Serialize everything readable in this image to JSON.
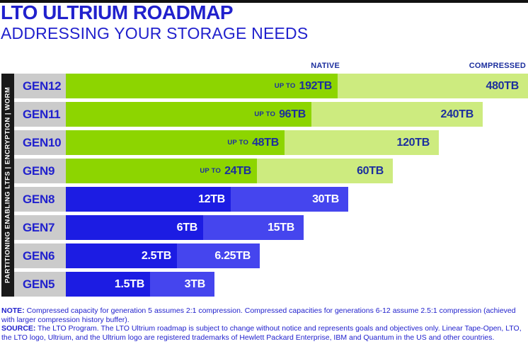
{
  "header": {
    "title": "LTO ULTRIUM ROADMAP",
    "subtitle": "ADDRESSING YOUR STORAGE NEEDS"
  },
  "chart_data": {
    "type": "bar",
    "orientation": "horizontal",
    "title": "LTO ULTRIUM ROADMAP",
    "subtitle": "ADDRESSING YOUR STORAGE NEEDS",
    "units": "TB",
    "scale": "log2 capacity (constant pixel step per generation), bars left-aligned",
    "legend_position": "column headers top-right",
    "column_headers": {
      "native": "NATIVE",
      "compressed": "COMPRESSED"
    },
    "sidebar_label": "PARTITIONING ENABLING LTFS | ENCRYPTION | WORM",
    "categories": [
      "GEN12",
      "GEN11",
      "GEN10",
      "GEN9",
      "GEN8",
      "GEN7",
      "GEN6",
      "GEN5"
    ],
    "series": [
      {
        "name": "Native (TB)",
        "values": [
          192,
          96,
          48,
          24,
          12,
          6,
          2.5,
          1.5
        ]
      },
      {
        "name": "Compressed (TB)",
        "values": [
          480,
          240,
          120,
          60,
          30,
          15,
          6.25,
          3
        ]
      }
    ],
    "rows": [
      {
        "gen": "GEN12",
        "native_tb": 192,
        "compressed_tb": 480,
        "native_prefix": "UP TO",
        "native_label": "192TB",
        "compressed_label": "480TB",
        "palette": "green",
        "native_width": 384,
        "compressed_width": 269
      },
      {
        "gen": "GEN11",
        "native_tb": 96,
        "compressed_tb": 240,
        "native_prefix": "UP TO",
        "native_label": "96TB",
        "compressed_label": "240TB",
        "palette": "green",
        "native_width": 347,
        "compressed_width": 242
      },
      {
        "gen": "GEN10",
        "native_tb": 48,
        "compressed_tb": 120,
        "native_prefix": "UP TO",
        "native_label": "48TB",
        "compressed_label": "120TB",
        "palette": "green",
        "native_width": 309,
        "compressed_width": 218
      },
      {
        "gen": "GEN9",
        "native_tb": 24,
        "compressed_tb": 60,
        "native_prefix": "UP TO",
        "native_label": "24TB",
        "compressed_label": "60TB",
        "palette": "green",
        "native_width": 270,
        "compressed_width": 192
      },
      {
        "gen": "GEN8",
        "native_tb": 12,
        "compressed_tb": 30,
        "native_prefix": "",
        "native_label": "12TB",
        "compressed_label": "30TB",
        "palette": "blue",
        "native_width": 233,
        "compressed_width": 166
      },
      {
        "gen": "GEN7",
        "native_tb": 6,
        "compressed_tb": 15,
        "native_prefix": "",
        "native_label": "6TB",
        "compressed_label": "15TB",
        "palette": "blue",
        "native_width": 194,
        "compressed_width": 142
      },
      {
        "gen": "GEN6",
        "native_tb": 2.5,
        "compressed_tb": 6.25,
        "native_prefix": "",
        "native_label": "2.5TB",
        "compressed_label": "6.25TB",
        "palette": "blue",
        "native_width": 157,
        "compressed_width": 117
      },
      {
        "gen": "GEN5",
        "native_tb": 1.5,
        "compressed_tb": 3,
        "native_prefix": "",
        "native_label": "1.5TB",
        "compressed_label": "3TB",
        "palette": "blue",
        "native_width": 119,
        "compressed_width": 91
      }
    ],
    "colors": {
      "brand_blue": "#2121cd",
      "native_green": "#8dd500",
      "compressed_green": "#cdeb7f",
      "native_blue": "#1c1ce3",
      "compressed_blue": "#4545ee",
      "label_gray": "#cbcbcb",
      "sidebar_black": "#191919",
      "on_green_text": "#1c2f9e",
      "on_blue_text": "#ffffff"
    }
  },
  "footer": {
    "note_label": "NOTE:",
    "note_text": "Compressed capacity for generation 5 assumes 2:1 compression. Compressed capacities for generations 6-12 assume 2.5:1 compression (achieved with larger compression history buffer).",
    "source_label": "SOURCE:",
    "source_text": "The LTO Program. The LTO Ultrium roadmap is subject to change without notice and represents goals and objectives only. Linear Tape-Open, LTO, the LTO logo, Ultrium, and the Ultrium logo are registered trademarks of Hewlett Packard Enterprise, IBM and Quantum in the US and other countries."
  }
}
